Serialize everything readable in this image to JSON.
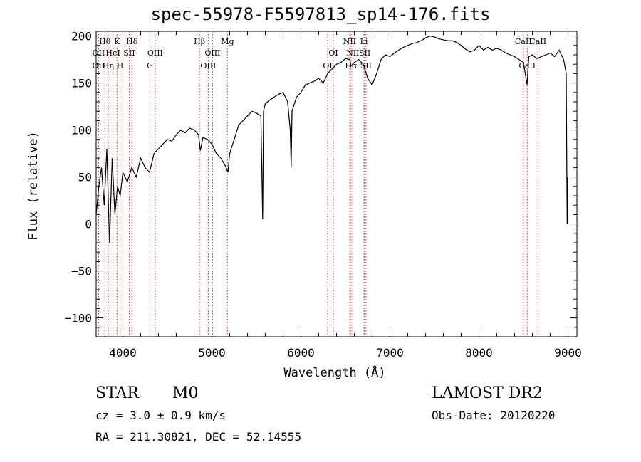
{
  "chart_data": {
    "type": "line",
    "title": "spec-55978-F5597813_sp14-176.fits",
    "xlabel": "Wavelength (Å)",
    "ylabel": "Flux (relative)",
    "xlim": [
      3700,
      9100
    ],
    "ylim": [
      -120,
      205
    ],
    "xticks": [
      4000,
      5000,
      6000,
      7000,
      8000,
      9000
    ],
    "yticks": [
      -100,
      -50,
      0,
      50,
      100,
      150,
      200
    ],
    "grid": false,
    "series": [
      {
        "x": [
          3700,
          3730,
          3760,
          3790,
          3820,
          3850,
          3880,
          3910,
          3940,
          3970,
          4000,
          4050,
          4100,
          4150,
          4200,
          4250,
          4300,
          4350,
          4400,
          4450,
          4500,
          4550,
          4600,
          4650,
          4700,
          4750,
          4800,
          4850,
          4870,
          4900,
          4950,
          5000,
          5050,
          5100,
          5150,
          5180,
          5200,
          5250,
          5300,
          5350,
          5400,
          5450,
          5500,
          5550,
          5570,
          5580,
          5600,
          5650,
          5700,
          5750,
          5800,
          5850,
          5880,
          5890,
          5900,
          5950,
          6000,
          6050,
          6100,
          6150,
          6200,
          6250,
          6300,
          6350,
          6400,
          6450,
          6500,
          6550,
          6563,
          6600,
          6650,
          6700,
          6750,
          6800,
          6850,
          6900,
          6950,
          7000,
          7050,
          7100,
          7150,
          7200,
          7250,
          7300,
          7350,
          7400,
          7450,
          7500,
          7550,
          7600,
          7650,
          7700,
          7750,
          7800,
          7850,
          7900,
          7950,
          8000,
          8050,
          8100,
          8150,
          8200,
          8250,
          8300,
          8350,
          8400,
          8450,
          8500,
          8540,
          8560,
          8600,
          8650,
          8700,
          8750,
          8800,
          8850,
          8900,
          8950,
          8980,
          8990,
          8995,
          9000
        ],
        "y": [
          10,
          40,
          60,
          20,
          80,
          -20,
          70,
          10,
          40,
          30,
          55,
          45,
          60,
          50,
          70,
          60,
          55,
          75,
          80,
          85,
          90,
          88,
          95,
          100,
          97,
          102,
          100,
          95,
          78,
          92,
          90,
          85,
          75,
          70,
          62,
          55,
          75,
          90,
          105,
          110,
          115,
          120,
          118,
          115,
          5,
          120,
          128,
          132,
          135,
          138,
          140,
          130,
          100,
          60,
          120,
          135,
          140,
          148,
          150,
          152,
          155,
          150,
          160,
          165,
          170,
          172,
          176,
          175,
          168,
          172,
          175,
          170,
          155,
          148,
          160,
          175,
          180,
          178,
          182,
          185,
          188,
          190,
          192,
          193,
          195,
          198,
          200,
          199,
          197,
          196,
          195,
          195,
          193,
          190,
          186,
          183,
          185,
          190,
          185,
          188,
          185,
          187,
          185,
          182,
          180,
          178,
          175,
          172,
          148,
          178,
          180,
          176,
          178,
          180,
          182,
          178,
          185,
          175,
          160,
          0,
          50,
          0
        ]
      }
    ],
    "lines": [
      {
        "label": "Hθ",
        "x": 3798,
        "row": 1
      },
      {
        "label": "Hη",
        "x": 3835,
        "row": 3
      },
      {
        "label": "OII",
        "x": 3727,
        "row": 2
      },
      {
        "label": "OII",
        "x": 3727,
        "row": 3
      },
      {
        "label": "HeI",
        "x": 3889,
        "row": 2
      },
      {
        "label": "K",
        "x": 3934,
        "row": 1
      },
      {
        "label": "H",
        "x": 3968,
        "row": 3
      },
      {
        "label": "Hδ",
        "x": 4102,
        "row": 1
      },
      {
        "label": "SII",
        "x": 4072,
        "row": 2
      },
      {
        "label": "G",
        "x": 4304,
        "row": 3
      },
      {
        "label": "OIII",
        "x": 4363,
        "row": 2
      },
      {
        "label": "Hβ",
        "x": 4861,
        "row": 1
      },
      {
        "label": "OIII",
        "x": 4959,
        "row": 3
      },
      {
        "label": "OIII",
        "x": 5007,
        "row": 2
      },
      {
        "label": "Mg",
        "x": 5175,
        "row": 1
      },
      {
        "label": "OI",
        "x": 6300,
        "row": 3
      },
      {
        "label": "OI",
        "x": 6364,
        "row": 2
      },
      {
        "label": "NII",
        "x": 6548,
        "row": 1
      },
      {
        "label": "NII",
        "x": 6583,
        "row": 2
      },
      {
        "label": "Hα",
        "x": 6563,
        "row": 3
      },
      {
        "label": "Li",
        "x": 6708,
        "row": 1
      },
      {
        "label": "SII",
        "x": 6717,
        "row": 2
      },
      {
        "label": "SII",
        "x": 6731,
        "row": 3
      },
      {
        "label": "CaII",
        "x": 8498,
        "row": 1
      },
      {
        "label": "CaII",
        "x": 8542,
        "row": 3
      },
      {
        "label": "CaII",
        "x": 8662,
        "row": 1
      }
    ]
  },
  "info": {
    "type": "STAR",
    "subclass": "M0",
    "survey": "LAMOST DR2",
    "cz": "cz = 3.0 ± 0.9 km/s",
    "obs_date": "Obs-Date: 20120220",
    "coords": "RA = 211.30821, DEC =  52.14555"
  }
}
